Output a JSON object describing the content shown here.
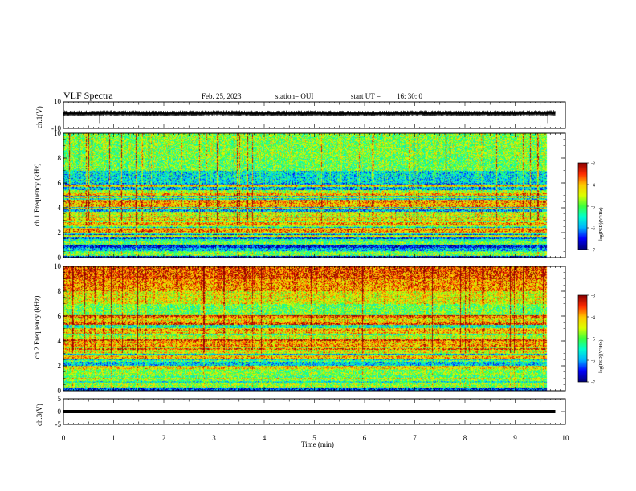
{
  "header": {
    "title": "VLF Spectra",
    "date": "Feb. 25, 2023",
    "station": "station= OUI",
    "start": "start UT =",
    "start_time": "16: 30: 0"
  },
  "colors": {
    "trace": "#000000",
    "colormap": [
      "#00007a",
      "#0000ff",
      "#00b4ff",
      "#00ffd0",
      "#3cff3c",
      "#dcff00",
      "#ffc800",
      "#ff2a00",
      "#8c0000",
      "#ffffff"
    ]
  },
  "chart_data": [
    {
      "type": "line",
      "name": "ch1-waveform",
      "ylabel": "ch.1(V)",
      "ylim": [
        -10,
        10
      ],
      "y_ticklabels": [
        "10",
        "-10"
      ],
      "x": [
        0,
        1,
        2,
        3,
        4,
        5,
        6,
        7,
        8,
        9,
        9.8
      ],
      "y": [
        1.3,
        1.5,
        1.2,
        1.6,
        1.3,
        1.4,
        1.2,
        1.5,
        1.3,
        1.4,
        1.7
      ],
      "xlim": [
        0,
        10
      ]
    },
    {
      "type": "heatmap",
      "name": "ch1-spectrogram",
      "ylabel": "ch.1 Frequency (kHz)",
      "ylim": [
        0,
        10
      ],
      "y_ticklabels": [
        "0",
        "2",
        "4",
        "6",
        "8",
        "10"
      ],
      "xlim": [
        0,
        10
      ],
      "data_end_min": 9.8,
      "freq_khz": [
        0.5,
        1.5,
        2.5,
        3.5,
        4.5,
        5.5,
        6.5,
        7.5,
        8.5,
        9.5
      ],
      "mean_log_psd": [
        -6.6,
        -6.3,
        -5.8,
        -6.0,
        -5.7,
        -6.0,
        -5.7,
        -5.0,
        -4.9,
        -4.9
      ],
      "colorbar": {
        "label": "log(PSD)(V²/Hz)",
        "range": [
          -7,
          -3
        ],
        "ticklabels": [
          "-3",
          "-4",
          "-5",
          "-6",
          "-7"
        ]
      }
    },
    {
      "type": "heatmap",
      "name": "ch2-spectrogram",
      "ylabel": "ch.2 Frequency (kHz)",
      "ylim": [
        0,
        10
      ],
      "y_ticklabels": [
        "0",
        "2",
        "4",
        "6",
        "8",
        "10"
      ],
      "xlim": [
        0,
        10
      ],
      "data_end_min": 9.8,
      "freq_khz": [
        0.5,
        1.5,
        2.5,
        3.5,
        4.5,
        5.5,
        6.5,
        7.5,
        8.5,
        9.5
      ],
      "mean_log_psd": [
        -6.4,
        -6.2,
        -5.8,
        -5.6,
        -5.3,
        -5.5,
        -5.0,
        -4.4,
        -3.9,
        -3.6
      ],
      "colorbar": {
        "label": "log(PSD)(V²/Hz)",
        "range": [
          -7,
          -3
        ],
        "ticklabels": [
          "-3",
          "-4",
          "-5",
          "-6",
          "-7"
        ]
      }
    },
    {
      "type": "line",
      "name": "ch3-waveform",
      "ylabel": "ch.3(V)",
      "ylim": [
        -5,
        5
      ],
      "y_ticklabels": [
        "5",
        "0",
        "-5"
      ],
      "x": [
        0,
        9.8
      ],
      "y": [
        0,
        0
      ],
      "xlim": [
        0,
        10
      ],
      "xlabel": "Time (min)",
      "x_ticklabels": [
        "0",
        "1",
        "2",
        "3",
        "4",
        "5",
        "6",
        "7",
        "8",
        "9",
        "10"
      ]
    }
  ]
}
